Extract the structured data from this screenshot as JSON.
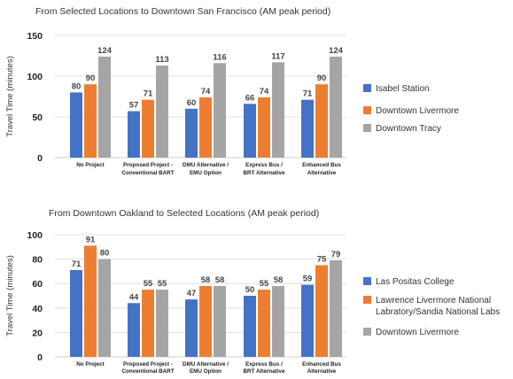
{
  "chart_data": [
    {
      "type": "bar",
      "title": "From Selected Locations to Downtown San Francisco (AM peak period)",
      "xlabel": "",
      "ylabel": "Travel Time (minutes)",
      "ylim": [
        0,
        150
      ],
      "yticks": [
        0,
        50,
        100,
        150
      ],
      "grid": true,
      "legend_position": "right",
      "categories": [
        [
          "No Project"
        ],
        [
          "Proposed Project -",
          "Conventional BART"
        ],
        [
          "DMU Alternative /",
          "EMU Option"
        ],
        [
          "Express Bus /",
          "BRT Alternative"
        ],
        [
          "Enhanced Bus",
          "Alternative"
        ]
      ],
      "series": [
        {
          "name": [
            "Isabel Station"
          ],
          "color": "#4472c4",
          "values": [
            80,
            57,
            60,
            66,
            71
          ]
        },
        {
          "name": [
            "Downtown Livermore"
          ],
          "color": "#ed7d31",
          "values": [
            90,
            71,
            74,
            74,
            90
          ]
        },
        {
          "name": [
            "Downtown Tracy"
          ],
          "color": "#a5a5a5",
          "values": [
            124,
            113,
            116,
            117,
            124
          ]
        }
      ]
    },
    {
      "type": "bar",
      "title": "From Downtown Oakland to Selected Locations (AM peak period)",
      "xlabel": "",
      "ylabel": "Travel Time (minutes)",
      "ylim": [
        0,
        100
      ],
      "yticks": [
        0,
        20,
        40,
        60,
        80,
        100
      ],
      "grid": true,
      "legend_position": "right",
      "categories": [
        [
          "No Project"
        ],
        [
          "Proposed Project -",
          "Conventional BART"
        ],
        [
          "DMU Alternative /",
          "EMU Option"
        ],
        [
          "Express Bus /",
          "BRT Alternative"
        ],
        [
          "Enhanced Bus",
          "Alternative"
        ]
      ],
      "series": [
        {
          "name": [
            "Las Positas College"
          ],
          "color": "#4472c4",
          "values": [
            71,
            44,
            47,
            50,
            59
          ]
        },
        {
          "name": [
            "Lawrence Livermore National",
            "Labratory/Sandia National Labs"
          ],
          "color": "#ed7d31",
          "values": [
            91,
            55,
            58,
            55,
            75
          ]
        },
        {
          "name": [
            "Downtown Livermore"
          ],
          "color": "#a5a5a5",
          "values": [
            80,
            55,
            58,
            58,
            79
          ]
        }
      ]
    }
  ]
}
